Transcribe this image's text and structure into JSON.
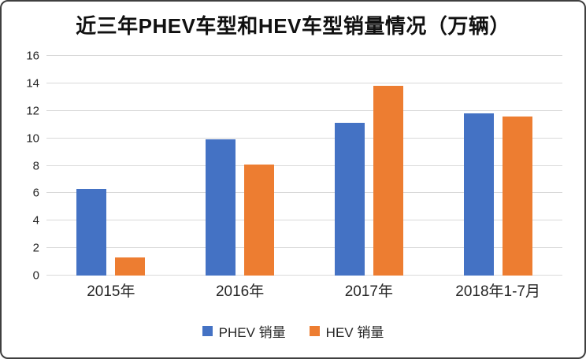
{
  "chart_data": {
    "type": "bar",
    "title": "近三年PHEV车型和HEV车型销量情况（万辆）",
    "categories": [
      "2015年",
      "2016年",
      "2017年",
      "2018年1-7月"
    ],
    "series": [
      {
        "name": "PHEV 销量",
        "color": "#4472C4",
        "values": [
          6.3,
          9.9,
          11.1,
          11.8
        ]
      },
      {
        "name": "HEV 销量",
        "color": "#ED7D31",
        "values": [
          1.3,
          8.1,
          13.8,
          11.6
        ]
      }
    ],
    "xlabel": "",
    "ylabel": "",
    "ylim": [
      0,
      16
    ],
    "yticks": [
      0,
      2,
      4,
      6,
      8,
      10,
      12,
      14,
      16
    ],
    "grid": true,
    "gridline_color": "#d9d9d9",
    "legend_position": "bottom"
  }
}
